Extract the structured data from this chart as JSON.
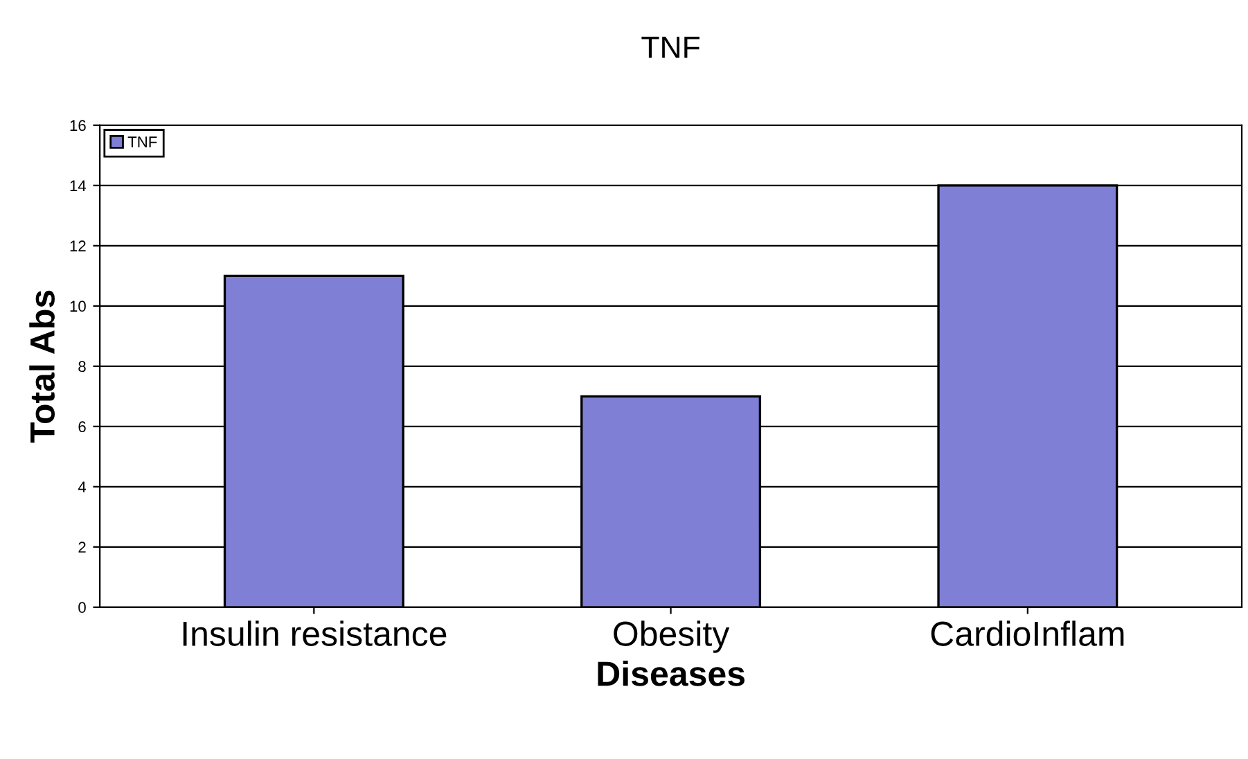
{
  "chart_data": {
    "type": "bar",
    "title": "TNF",
    "xlabel": "Diseases",
    "ylabel": "Total Abs",
    "categories": [
      "Insulin resistance",
      "Obesity",
      "CardioInflam"
    ],
    "series": [
      {
        "name": "TNF",
        "color": "#7f7fd6",
        "values": [
          11,
          7,
          14
        ]
      }
    ],
    "ylim": [
      0,
      16
    ],
    "yticks": [
      0,
      2,
      4,
      6,
      8,
      10,
      12,
      14,
      16
    ],
    "grid": "y",
    "legend": "top left"
  }
}
